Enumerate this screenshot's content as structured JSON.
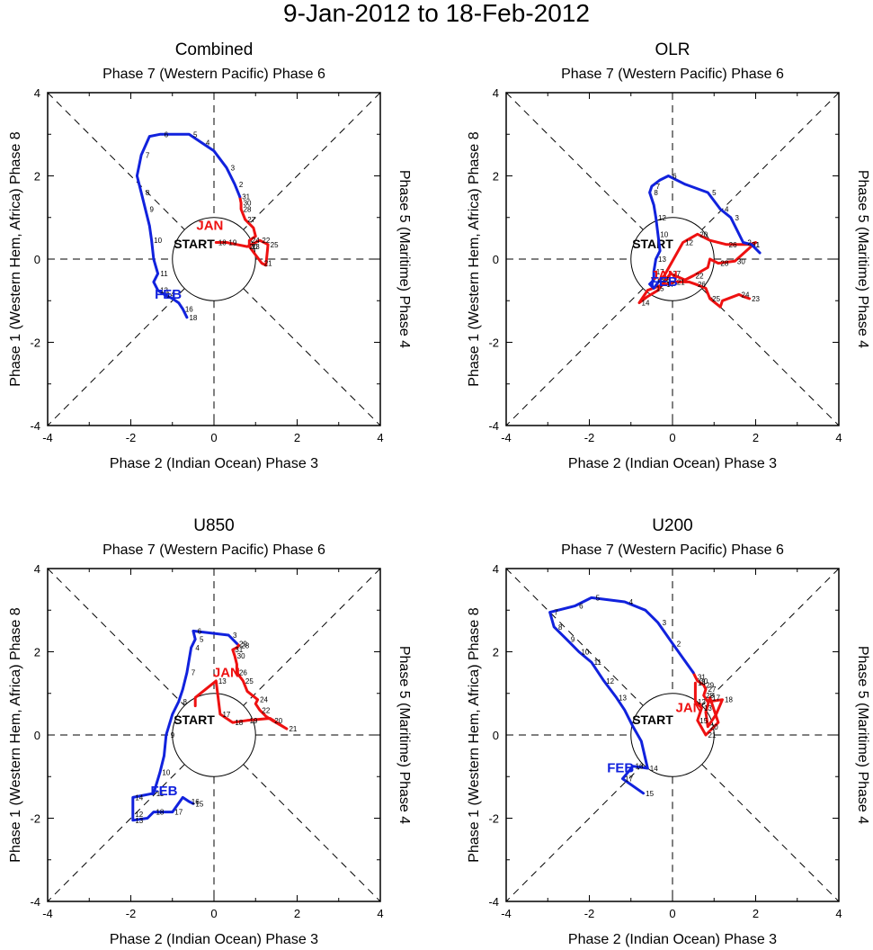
{
  "title": "9-Jan-2012 to 18-Feb-2012",
  "axis_labels": {
    "top": "Phase 7 (Western Pacific) Phase 6",
    "bottom": "Phase 2 (Indian Ocean) Phase 3",
    "left": "Phase 1 (Western Hem, Africa) Phase 8",
    "right": "Phase 5 (Maritime) Phase 4"
  },
  "tick_labels": [
    "-4",
    "-2",
    "0",
    "2",
    "4"
  ],
  "start_label": "START",
  "colors": {
    "jan": "#ee1111",
    "feb": "#1122dd",
    "axis": "#000000"
  },
  "chart_data": [
    {
      "type": "line",
      "title": "Combined",
      "xlim": [
        -4,
        4
      ],
      "ylim": [
        -4,
        4
      ],
      "month_labels": {
        "jan": {
          "text": "JAN",
          "x": -0.1,
          "y": 0.7
        },
        "feb": {
          "text": "FEB",
          "x": -1.1,
          "y": -0.95
        }
      },
      "series": [
        {
          "name": "Jan",
          "color": "#ee1111",
          "x": [
            0.05,
            0.3,
            0.55,
            0.8,
            1.1,
            1.3,
            1.25,
            1.15,
            0.85,
            0.85,
            1.0,
            0.95,
            0.75,
            0.65,
            0.65,
            0.62
          ],
          "y": [
            0.4,
            0.4,
            0.35,
            0.3,
            0.45,
            0.35,
            -0.15,
            -0.1,
            0.3,
            0.45,
            0.55,
            0.75,
            0.95,
            1.2,
            1.35,
            1.5
          ],
          "labels": {
            "0": "18",
            "1": "19",
            "3": "20",
            "4": "22",
            "5": "25",
            "7": "21",
            "8": "23",
            "9": "24",
            "12": "27",
            "13": "28",
            "14": "30",
            "15": "31"
          }
        },
        {
          "name": "Feb",
          "color": "#1122dd",
          "x": [
            0.62,
            0.5,
            0.3,
            0.0,
            -0.3,
            -0.6,
            -0.85,
            -1.3,
            -1.55,
            -1.75,
            -1.85,
            -1.75,
            -1.65,
            -1.55,
            -1.5,
            -1.45,
            -1.35,
            -1.45,
            -1.35,
            -1.2,
            -1.0,
            -0.85,
            -0.75,
            -0.65
          ],
          "y": [
            1.5,
            1.8,
            2.2,
            2.6,
            2.8,
            3.0,
            3.0,
            3.0,
            2.95,
            2.5,
            2.0,
            1.6,
            1.2,
            0.8,
            0.45,
            0.0,
            -0.35,
            -0.55,
            -0.75,
            -0.85,
            -0.95,
            -1.05,
            -1.2,
            -1.4
          ],
          "labels": {
            "1": "2",
            "2": "3",
            "4": "4",
            "5": "5",
            "7": "6",
            "9": "7",
            "11": "8",
            "12": "9",
            "14": "10",
            "16": "11",
            "18": "13",
            "19": "14",
            "22": "16",
            "23": "18"
          }
        }
      ]
    },
    {
      "type": "line",
      "title": "OLR",
      "xlim": [
        -4,
        4
      ],
      "ylim": [
        -4,
        4
      ],
      "month_labels": {
        "jan": {
          "text": "JAN",
          "x": -0.2,
          "y": -0.5
        },
        "feb": {
          "text": "FEB",
          "x": -0.2,
          "y": -0.65
        }
      },
      "series": [
        {
          "name": "Jan",
          "color": "#ee1111",
          "x": [
            -0.3,
            -0.2,
            0.25,
            0.6,
            0.9,
            1.3,
            1.85,
            2.0,
            1.5,
            1.1,
            0.9,
            0.85,
            0.5,
            0.3,
            -0.05,
            -0.35,
            -0.6,
            -0.8,
            -0.6,
            -0.2,
            -0.1,
            0.05,
            0.2,
            0.4,
            0.55,
            0.8,
            0.9,
            1.15,
            1.2,
            1.6,
            1.7,
            1.85
          ],
          "y": [
            -0.5,
            -0.4,
            0.4,
            0.6,
            0.45,
            0.35,
            0.35,
            0.4,
            -0.05,
            -0.1,
            0.0,
            -0.2,
            -0.4,
            -0.5,
            -0.35,
            -0.75,
            -0.9,
            -1.05,
            -0.75,
            -0.6,
            -0.6,
            -0.55,
            -0.55,
            -0.55,
            -0.6,
            -0.7,
            -0.95,
            -1.15,
            -1.0,
            -0.85,
            -0.9,
            -0.95
          ],
          "labels": {
            "0": "18",
            "2": "12",
            "3": "20",
            "5": "26",
            "6": "31",
            "8": "30",
            "9": "28",
            "12": "22",
            "14": "27",
            "17": "14",
            "19": "17",
            "21": "21",
            "24": "26",
            "26": "25",
            "29": "24",
            "31": "23"
          }
        },
        {
          "name": "Feb",
          "color": "#1122dd",
          "x": [
            2.1,
            1.9,
            1.7,
            1.4,
            1.15,
            0.85,
            0.3,
            -0.1,
            -0.3,
            -0.5,
            -0.55,
            -0.45,
            -0.4,
            -0.35,
            -0.3,
            -0.4,
            -0.45,
            -0.45,
            -0.55,
            -0.45,
            -0.3
          ],
          "y": [
            0.15,
            0.35,
            0.4,
            1.0,
            1.2,
            1.6,
            1.8,
            2.0,
            1.9,
            1.75,
            1.6,
            1.3,
            1.0,
            0.6,
            0.2,
            0.0,
            -0.3,
            -0.5,
            -0.6,
            -0.7,
            -0.5
          ],
          "labels": {
            "1": "1",
            "2": "2",
            "3": "3",
            "4": "4",
            "5": "5",
            "7": "6",
            "9": "7",
            "10": "8",
            "12": "12",
            "13": "10",
            "15": "13",
            "16": "17",
            "17": "16",
            "19": "15",
            "20": "18"
          }
        }
      ]
    },
    {
      "type": "line",
      "title": "U850",
      "xlim": [
        -4,
        4
      ],
      "ylim": [
        -4,
        4
      ],
      "month_labels": {
        "jan": {
          "text": "JAN",
          "x": 0.3,
          "y": 1.4
        },
        "feb": {
          "text": "FEB",
          "x": -1.2,
          "y": -1.45
        }
      },
      "series": [
        {
          "name": "Jan",
          "color": "#ee1111",
          "x": [
            -0.45,
            -0.45,
            0.05,
            0.15,
            0.45,
            0.8,
            1.35,
            1.75,
            1.4,
            1.25,
            1.1,
            1.0,
            1.05,
            0.8,
            0.7,
            0.55,
            0.55,
            0.5,
            0.45,
            0.55,
            0.6,
            0.55
          ],
          "y": [
            0.7,
            0.9,
            1.3,
            0.5,
            0.3,
            0.35,
            0.4,
            0.15,
            0.35,
            0.45,
            0.6,
            0.75,
            0.85,
            1.05,
            1.3,
            1.5,
            1.7,
            1.9,
            2.05,
            2.1,
            2.15,
            2.2
          ],
          "labels": {
            "2": "13",
            "3": "17",
            "4": "18",
            "5": "19",
            "7": "21",
            "8": "20",
            "10": "22",
            "12": "24",
            "14": "25",
            "15": "26",
            "17": "30",
            "18": "31",
            "20": "28",
            "21": "29"
          }
        },
        {
          "name": "Feb",
          "color": "#1122dd",
          "x": [
            0.55,
            0.35,
            -0.5,
            -0.45,
            -0.55,
            -0.65,
            -0.75,
            -0.85,
            -1.0,
            -1.15,
            -1.2,
            -1.3,
            -1.45,
            -1.95,
            -1.95,
            -1.95,
            -1.6,
            -1.45,
            -1.0,
            -0.75,
            -0.6,
            -0.5
          ],
          "y": [
            2.2,
            2.4,
            2.5,
            2.3,
            2.1,
            1.5,
            1.1,
            0.8,
            0.5,
            0.0,
            -0.5,
            -0.9,
            -1.4,
            -1.5,
            -1.9,
            -2.05,
            -2.0,
            -1.85,
            -1.85,
            -1.5,
            -1.6,
            -1.65
          ],
          "labels": {
            "1": "3",
            "2": "6",
            "3": "5",
            "4": "4",
            "5": "7",
            "7": "8",
            "9": "9",
            "11": "10",
            "12": "11",
            "13": "14",
            "14": "12",
            "15": "13",
            "17": "18",
            "18": "17",
            "20": "16",
            "21": "15"
          }
        }
      ]
    },
    {
      "type": "line",
      "title": "U200",
      "xlim": [
        -4,
        4
      ],
      "ylim": [
        -4,
        4
      ],
      "month_labels": {
        "jan": {
          "text": "JAN",
          "x": 0.4,
          "y": 0.55
        },
        "feb": {
          "text": "FEB",
          "x": -1.25,
          "y": -0.9
        }
      },
      "series": [
        {
          "name": "Jan",
          "color": "#ee1111",
          "x": [
            0.55,
            0.55,
            0.7,
            0.6,
            0.8,
            1.1,
            0.9,
            0.8,
            0.85,
            1.05,
            1.2,
            0.85,
            0.75,
            0.8,
            0.75,
            0.6,
            0.55,
            0.5
          ],
          "y": [
            1.25,
            0.8,
            0.65,
            0.35,
            0.0,
            0.3,
            0.9,
            0.55,
            0.2,
            0.5,
            0.85,
            0.8,
            0.95,
            1.1,
            1.2,
            1.3,
            1.4,
            1.5
          ],
          "labels": {
            "0": "14",
            "1": "12",
            "2": "13",
            "3": "15",
            "4": "21",
            "6": "17",
            "8": "20",
            "10": "18",
            "12": "25",
            "13": "27",
            "14": "29",
            "15": "30",
            "16": "31"
          }
        },
        {
          "name": "Feb",
          "color": "#1122dd",
          "x": [
            0.5,
            0.0,
            -0.35,
            -0.65,
            -1.15,
            -1.95,
            -2.35,
            -2.95,
            -2.85,
            -2.55,
            -2.25,
            -1.95,
            -1.65,
            -1.35,
            -1.15,
            -0.95,
            -0.75,
            -0.6,
            -0.95,
            -1.2,
            -0.7
          ],
          "y": [
            1.5,
            2.2,
            2.7,
            3.0,
            3.2,
            3.3,
            3.1,
            2.95,
            2.6,
            2.3,
            2.0,
            1.75,
            1.3,
            0.9,
            0.6,
            0.2,
            -0.15,
            -0.8,
            -0.75,
            -1.05,
            -1.4
          ],
          "labels": {
            "1": "2",
            "2": "3",
            "4": "4",
            "5": "5",
            "6": "6",
            "7": "7",
            "8": "8",
            "9": "9",
            "10": "10",
            "11": "11",
            "12": "12",
            "13": "13",
            "17": "14",
            "18": "16",
            "19": "17",
            "20": "15"
          }
        }
      ]
    }
  ]
}
